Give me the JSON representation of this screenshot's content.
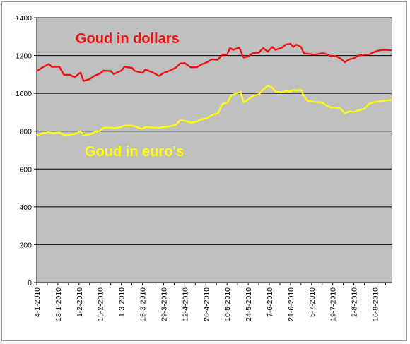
{
  "chart_data": {
    "type": "line",
    "title": "",
    "xlabel": "",
    "ylabel": "",
    "ylim": [
      0,
      1400
    ],
    "yticks": [
      0,
      200,
      400,
      600,
      800,
      1000,
      1200,
      1400
    ],
    "grid": "horizontal",
    "x_date_range": [
      "4-1-2010",
      "27-8-2010"
    ],
    "x_tick_labels": [
      "4-1-2010",
      "18-1-2010",
      "1-2-2010",
      "15-2-2010",
      "1-3-2010",
      "15-3-2010",
      "29-3-2010",
      "12-4-2010",
      "26-4-2010",
      "10-5-2010",
      "24-5-2010",
      "7-6-2010",
      "21-6-2010",
      "5-7-2010",
      "19-7-2010",
      "2-8-2010",
      "16-8-2010"
    ],
    "background_color": "#c0c0c0",
    "series": [
      {
        "name": "Goud in dollars",
        "color": "#ee1111",
        "points": [
          [
            "4-1-2010",
            1118
          ],
          [
            "8-1-2010",
            1138
          ],
          [
            "12-1-2010",
            1155
          ],
          [
            "14-1-2010",
            1140
          ],
          [
            "19-1-2010",
            1140
          ],
          [
            "22-1-2010",
            1098
          ],
          [
            "26-1-2010",
            1098
          ],
          [
            "29-1-2010",
            1085
          ],
          [
            "2-2-2010",
            1110
          ],
          [
            "4-2-2010",
            1065
          ],
          [
            "8-2-2010",
            1075
          ],
          [
            "11-2-2010",
            1092
          ],
          [
            "15-2-2010",
            1105
          ],
          [
            "17-2-2010",
            1120
          ],
          [
            "22-2-2010",
            1118
          ],
          [
            "24-2-2010",
            1102
          ],
          [
            "1-3-2010",
            1120
          ],
          [
            "3-3-2010",
            1140
          ],
          [
            "8-3-2010",
            1135
          ],
          [
            "10-3-2010",
            1118
          ],
          [
            "15-3-2010",
            1108
          ],
          [
            "17-3-2010",
            1126
          ],
          [
            "22-3-2010",
            1110
          ],
          [
            "26-3-2010",
            1092
          ],
          [
            "29-3-2010",
            1108
          ],
          [
            "2-4-2010",
            1120
          ],
          [
            "6-4-2010",
            1135
          ],
          [
            "9-4-2010",
            1158
          ],
          [
            "12-4-2010",
            1160
          ],
          [
            "16-4-2010",
            1138
          ],
          [
            "20-4-2010",
            1138
          ],
          [
            "23-4-2010",
            1152
          ],
          [
            "27-4-2010",
            1165
          ],
          [
            "30-4-2010",
            1180
          ],
          [
            "4-5-2010",
            1178
          ],
          [
            "7-5-2010",
            1205
          ],
          [
            "10-5-2010",
            1205
          ],
          [
            "12-5-2010",
            1240
          ],
          [
            "14-5-2010",
            1230
          ],
          [
            "18-5-2010",
            1242
          ],
          [
            "21-5-2010",
            1190
          ],
          [
            "24-5-2010",
            1195
          ],
          [
            "27-5-2010",
            1212
          ],
          [
            "31-5-2010",
            1215
          ],
          [
            "3-6-2010",
            1240
          ],
          [
            "6-6-2010",
            1220
          ],
          [
            "9-6-2010",
            1245
          ],
          [
            "11-6-2010",
            1230
          ],
          [
            "15-6-2010",
            1240
          ],
          [
            "18-6-2010",
            1258
          ],
          [
            "21-6-2010",
            1262
          ],
          [
            "23-6-2010",
            1245
          ],
          [
            "25-6-2010",
            1258
          ],
          [
            "28-6-2010",
            1245
          ],
          [
            "30-6-2010",
            1210
          ],
          [
            "2-7-2010",
            1210
          ],
          [
            "7-7-2010",
            1205
          ],
          [
            "12-7-2010",
            1212
          ],
          [
            "15-7-2010",
            1208
          ],
          [
            "18-7-2010",
            1195
          ],
          [
            "21-7-2010",
            1198
          ],
          [
            "24-7-2010",
            1185
          ],
          [
            "27-7-2010",
            1165
          ],
          [
            "30-7-2010",
            1180
          ],
          [
            "2-8-2010",
            1185
          ],
          [
            "5-8-2010",
            1200
          ],
          [
            "9-8-2010",
            1205
          ],
          [
            "12-8-2010",
            1205
          ],
          [
            "16-8-2010",
            1220
          ],
          [
            "19-8-2010",
            1228
          ],
          [
            "23-8-2010",
            1230
          ],
          [
            "27-8-2010",
            1228
          ]
        ]
      },
      {
        "name": "Goud in euro's",
        "color": "#ffff00",
        "points": [
          [
            "4-1-2010",
            778
          ],
          [
            "8-1-2010",
            790
          ],
          [
            "12-1-2010",
            795
          ],
          [
            "15-1-2010",
            790
          ],
          [
            "19-1-2010",
            795
          ],
          [
            "22-1-2010",
            780
          ],
          [
            "26-1-2010",
            780
          ],
          [
            "29-1-2010",
            785
          ],
          [
            "2-2-2010",
            800
          ],
          [
            "4-2-2010",
            780
          ],
          [
            "8-2-2010",
            782
          ],
          [
            "11-2-2010",
            795
          ],
          [
            "15-2-2010",
            802
          ],
          [
            "17-2-2010",
            818
          ],
          [
            "22-2-2010",
            820
          ],
          [
            "24-2-2010",
            815
          ],
          [
            "1-3-2010",
            822
          ],
          [
            "3-3-2010",
            830
          ],
          [
            "8-3-2010",
            830
          ],
          [
            "10-3-2010",
            825
          ],
          [
            "15-3-2010",
            812
          ],
          [
            "17-3-2010",
            822
          ],
          [
            "22-3-2010",
            820
          ],
          [
            "26-3-2010",
            818
          ],
          [
            "29-3-2010",
            822
          ],
          [
            "2-4-2010",
            825
          ],
          [
            "6-4-2010",
            832
          ],
          [
            "9-4-2010",
            858
          ],
          [
            "12-4-2010",
            855
          ],
          [
            "16-4-2010",
            845
          ],
          [
            "20-4-2010",
            850
          ],
          [
            "23-4-2010",
            862
          ],
          [
            "27-4-2010",
            870
          ],
          [
            "30-4-2010",
            885
          ],
          [
            "4-5-2010",
            895
          ],
          [
            "7-5-2010",
            945
          ],
          [
            "10-5-2010",
            950
          ],
          [
            "13-5-2010",
            990
          ],
          [
            "16-5-2010",
            1000
          ],
          [
            "19-5-2010",
            1008
          ],
          [
            "21-5-2010",
            952
          ],
          [
            "24-5-2010",
            968
          ],
          [
            "27-5-2010",
            985
          ],
          [
            "31-5-2010",
            995
          ],
          [
            "3-6-2010",
            1020
          ],
          [
            "6-6-2010",
            1040
          ],
          [
            "9-6-2010",
            1030
          ],
          [
            "11-6-2010",
            1010
          ],
          [
            "15-6-2010",
            1005
          ],
          [
            "18-6-2010",
            1012
          ],
          [
            "21-6-2010",
            1010
          ],
          [
            "23-6-2010",
            1018
          ],
          [
            "25-6-2010",
            1015
          ],
          [
            "28-6-2010",
            1020
          ],
          [
            "30-6-2010",
            985
          ],
          [
            "2-7-2010",
            962
          ],
          [
            "7-7-2010",
            955
          ],
          [
            "12-7-2010",
            952
          ],
          [
            "15-7-2010",
            935
          ],
          [
            "18-7-2010",
            925
          ],
          [
            "21-7-2010",
            925
          ],
          [
            "24-7-2010",
            920
          ],
          [
            "27-7-2010",
            895
          ],
          [
            "30-7-2010",
            905
          ],
          [
            "2-8-2010",
            902
          ],
          [
            "5-8-2010",
            910
          ],
          [
            "9-8-2010",
            918
          ],
          [
            "12-8-2010",
            945
          ],
          [
            "16-8-2010",
            955
          ],
          [
            "19-8-2010",
            958
          ],
          [
            "23-8-2010",
            962
          ],
          [
            "27-8-2010",
            965
          ]
        ]
      }
    ]
  }
}
